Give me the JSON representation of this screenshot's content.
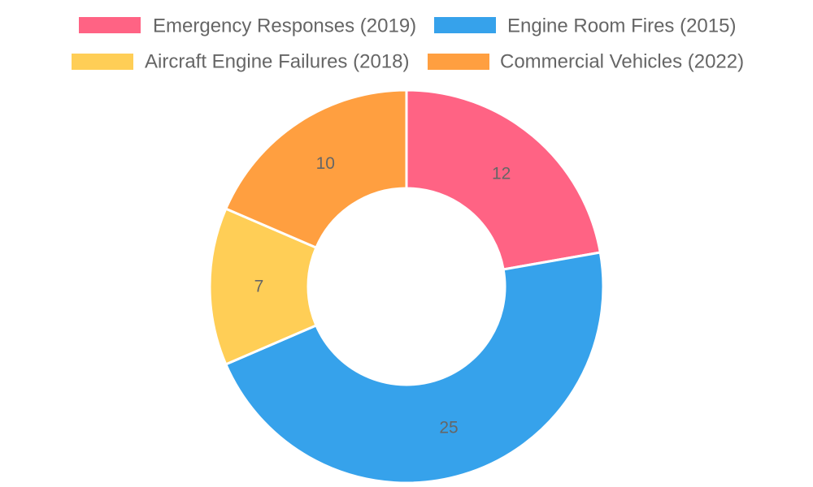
{
  "chart_data": {
    "type": "doughnut",
    "title": "",
    "legend_position": "top",
    "categories": [
      "Emergency Responses (2019)",
      "Engine Room Fires (2015)",
      "Aircraft Engine Failures (2018)",
      "Commercial Vehicles (2022)"
    ],
    "values": [
      12,
      25,
      7,
      10
    ],
    "colors": [
      "#FF6384",
      "#36A2EB",
      "#FFCE56",
      "#FF9F40"
    ],
    "data_labels": [
      "12",
      "25",
      "7",
      "10"
    ]
  }
}
